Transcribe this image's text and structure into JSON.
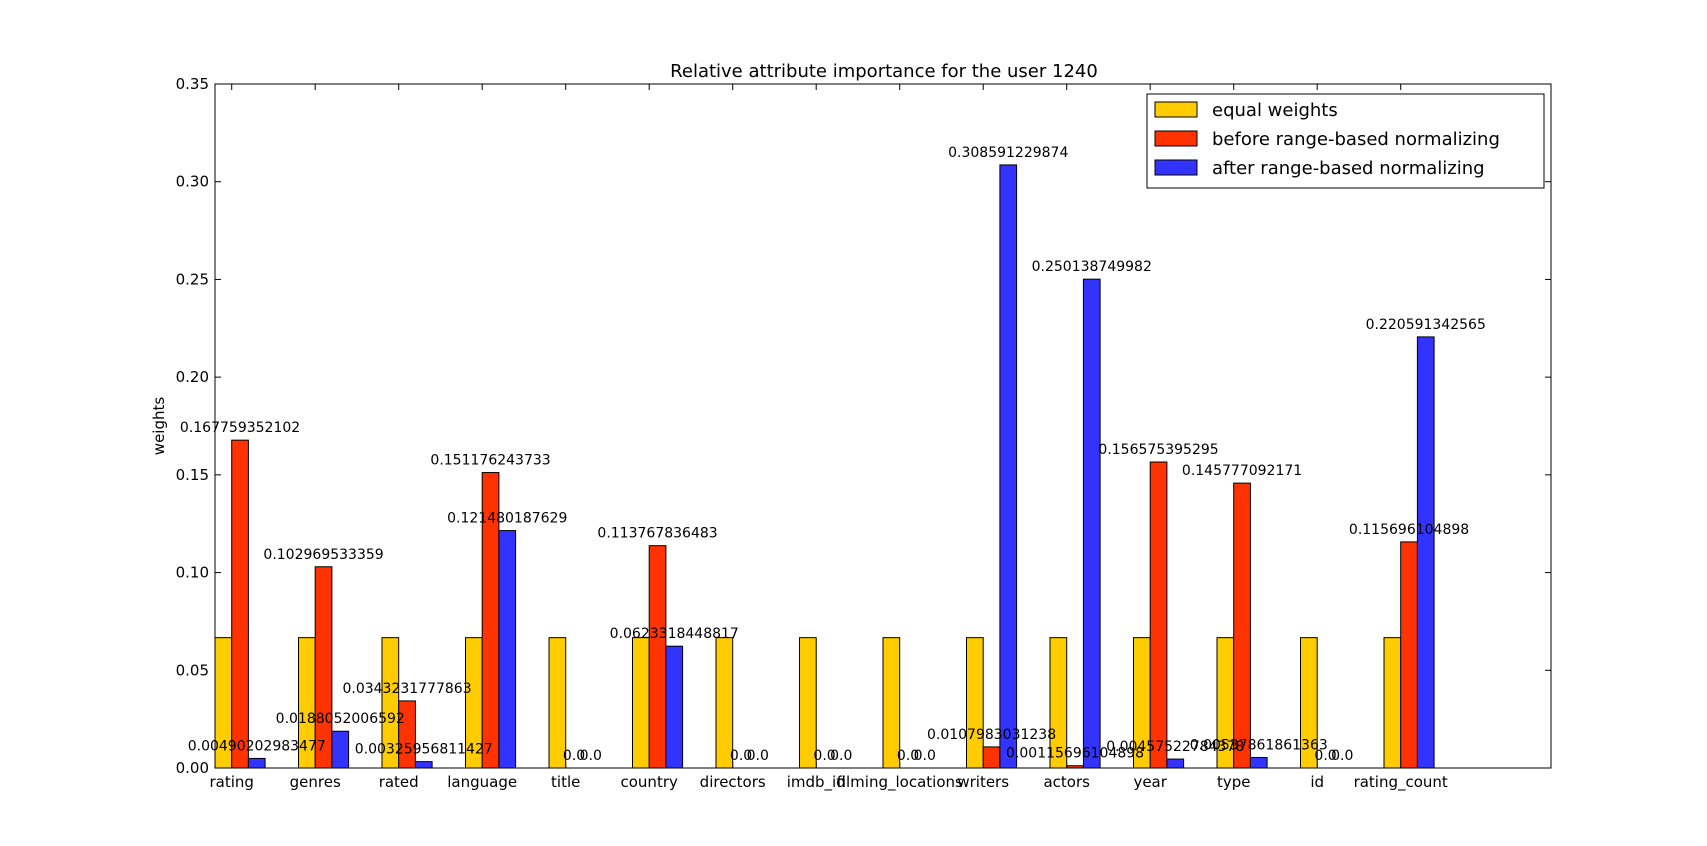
{
  "chart_data": {
    "type": "bar",
    "title": "Relative attribute importance for the user 1240",
    "xlabel": "",
    "ylabel": "weights",
    "ylim": [
      0,
      0.35
    ],
    "yticks": [
      "0.00",
      "0.05",
      "0.10",
      "0.15",
      "0.20",
      "0.25",
      "0.30",
      "0.35"
    ],
    "grid": false,
    "legend_position": "top-right",
    "categories": [
      "rating",
      "genres",
      "rated",
      "language",
      "title",
      "country",
      "directors",
      "imdb_id",
      "filming_locations",
      "writers",
      "actors",
      "year",
      "type",
      "id",
      "rating_count"
    ],
    "series": [
      {
        "name": "equal weights",
        "color": "#ffcc00",
        "values": [
          0.0667,
          0.0667,
          0.0667,
          0.0667,
          0.0667,
          0.0667,
          0.0667,
          0.0667,
          0.0667,
          0.0667,
          0.0667,
          0.0667,
          0.0667,
          0.0667,
          0.0667
        ],
        "labels": [
          "",
          "",
          "",
          "",
          "",
          "",
          "",
          "",
          "",
          "",
          "",
          "",
          "",
          "",
          ""
        ]
      },
      {
        "name": "before range-based normalizing",
        "color": "#ff3300",
        "values": [
          0.167759352102,
          0.102969533359,
          0.0343231777863,
          0.151176243733,
          0.0,
          0.113767836483,
          0.0,
          0.0,
          0.0,
          0.0107983031238,
          0.00115696104898,
          0.156575395295,
          0.145777092171,
          0.0,
          0.115696104898
        ],
        "labels": [
          "0.167759352102",
          "0.102969533359",
          "0.0343231777863",
          "0.151176243733",
          "0.0",
          "0.113767836483",
          "0.0",
          "0.0",
          "0.0",
          "0.0107983031238",
          "0.00115696104898",
          "0.156575395295",
          "0.145777092171",
          "0.0",
          "0.115696104898"
        ]
      },
      {
        "name": "after range-based normalizing",
        "color": "#3333ff",
        "values": [
          0.00490202983477,
          0.0188052006592,
          0.00325956811427,
          0.121480187629,
          0.0,
          0.0623318448817,
          0.0,
          0.0,
          0.0,
          0.308591229874,
          0.250138749982,
          0.00457522784378,
          0.00537861861363,
          0.0,
          0.220591342565
        ],
        "labels": [
          "0.00490202983477",
          "0.0188052006592",
          "0.00325956811427",
          "0.121480187629",
          "0.0",
          "0.0623318448817",
          "0.0",
          "0.0",
          "0.0",
          "0.308591229874",
          "0.250138749982",
          "0.00457522784378",
          "0.00537861861363",
          "0.0",
          "0.220591342565"
        ]
      }
    ]
  }
}
